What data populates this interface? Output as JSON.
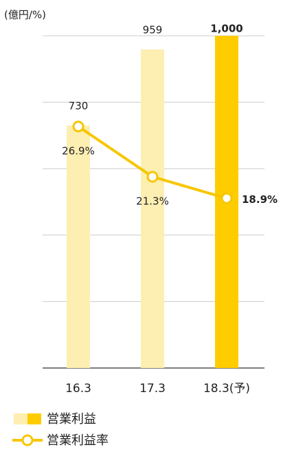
{
  "chart_data": {
    "type": "bar_line",
    "unit_label": "(億円/%)",
    "categories": [
      "16.3",
      "17.3",
      "18.3(予)"
    ],
    "series": [
      {
        "name": "営業利益",
        "type": "bar",
        "colors": [
          "#fdeeb2",
          "#fdeeb2",
          "#ffcc00"
        ],
        "values": [
          730,
          959,
          1000
        ],
        "value_labels": [
          "730",
          "959",
          "1,000"
        ]
      },
      {
        "name": "営業利益率",
        "type": "line",
        "axis": "y2",
        "color": "#f7c600",
        "values": [
          26.9,
          21.3,
          18.9
        ],
        "value_labels": [
          "26.9%",
          "21.3%",
          "18.9%"
        ]
      }
    ],
    "ylim": [
      0,
      1000
    ],
    "yticks": [
      0,
      200,
      400,
      600,
      800,
      1000
    ],
    "y2lim": [
      0,
      37
    ],
    "grid": true
  }
}
